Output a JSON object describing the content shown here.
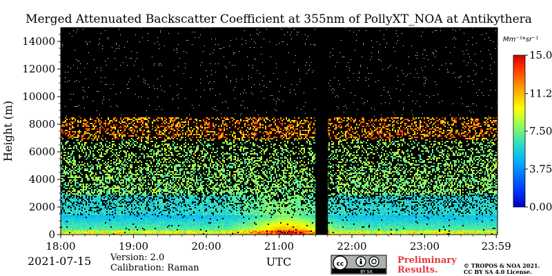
{
  "chart_data": {
    "type": "heatmap",
    "title": "Merged Attenuated Backscatter Coefficient at 355nm of PollyXT_NOA at Antikythera",
    "xlabel": "UTC",
    "ylabel": "Height (m)",
    "x_ticks": [
      "18:00",
      "19:00",
      "20:00",
      "21:00",
      "22:00",
      "23:00",
      "23:59"
    ],
    "x_range_hours": [
      18,
      24
    ],
    "y_ticks": [
      0,
      2000,
      4000,
      6000,
      8000,
      10000,
      12000,
      14000
    ],
    "ylim": [
      0,
      15000
    ],
    "colorbar": {
      "unit_label": "Mm⁻¹*sr⁻¹",
      "ticks": [
        "15.0",
        "11.2",
        "7.50",
        "3.75",
        "0.00"
      ],
      "range": [
        0,
        15
      ],
      "colormap": "jet"
    },
    "no_data_gap_utc": [
      21.5,
      21.67
    ],
    "notable_layers": [
      {
        "description_height_m": [
          0,
          1500
        ],
        "level": "high"
      },
      {
        "description_height_m": [
          7500,
          8500
        ],
        "level": "elevated"
      }
    ],
    "grid": false
  },
  "footer": {
    "date": "2021-07-15",
    "version": "Version: 2.0",
    "calibration": "Calibration: Raman",
    "cc_logo_text": "BY SA",
    "preliminary_line1": "Preliminary",
    "preliminary_line2": "Results.",
    "copyright_line1": "© TROPOS & NOA 2021.",
    "copyright_line2": "CC BY SA 4.0 License."
  },
  "colors": {
    "background_plot": "#000000",
    "preliminary": "#e8383d"
  }
}
